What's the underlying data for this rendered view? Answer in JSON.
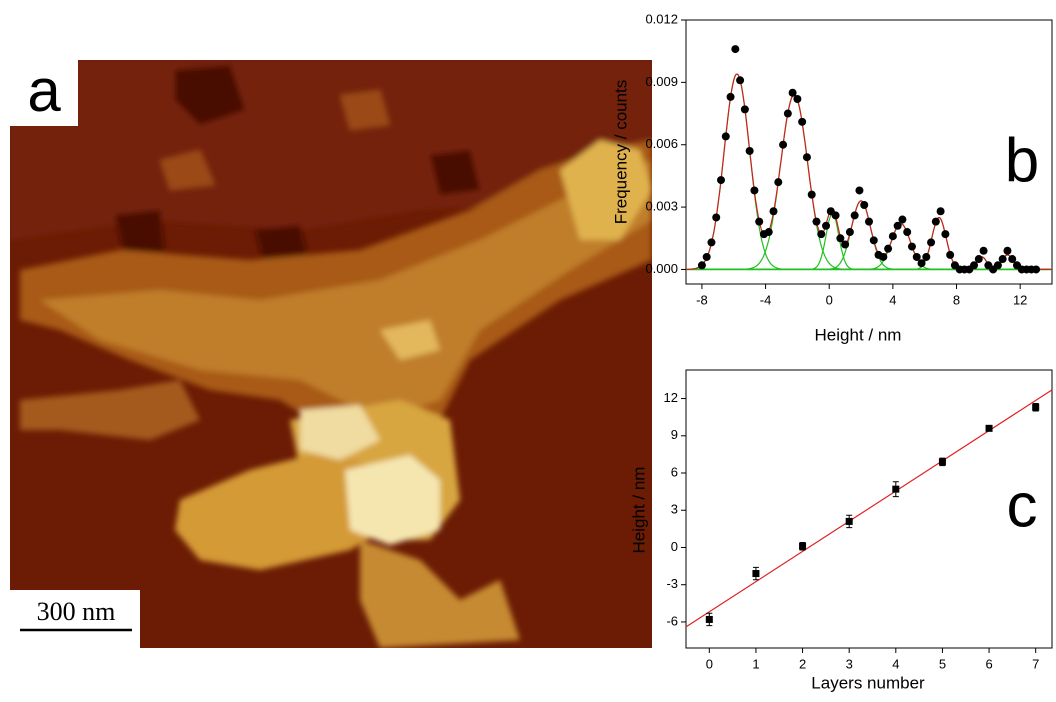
{
  "panel_a": {
    "label": "a",
    "scale_bar": "300 nm"
  },
  "chart_data": [
    {
      "type": "scatter",
      "panel": "b",
      "ylabel": "Frequency / counts",
      "xlabel": "Height / nm",
      "xlim": [
        -9,
        14
      ],
      "ylim": [
        -0.0007,
        0.012
      ],
      "xticks": [
        -8,
        -4,
        0,
        4,
        8,
        12
      ],
      "yticks": [
        {
          "value": 0,
          "label": "0.000"
        },
        {
          "value": 0.003,
          "label": "0.003"
        },
        {
          "value": 0.006,
          "label": "0.006"
        },
        {
          "value": 0.009,
          "label": "0.009"
        },
        {
          "value": 0.012,
          "label": "0.012"
        }
      ],
      "color": "#000000",
      "fit_color": "#20c020",
      "sum_color": "#d02020",
      "x": [
        -8.0,
        -7.7,
        -7.4,
        -7.1,
        -6.8,
        -6.5,
        -6.2,
        -5.9,
        -5.6,
        -5.3,
        -5.0,
        -4.7,
        -4.4,
        -4.1,
        -3.8,
        -3.5,
        -3.2,
        -2.9,
        -2.6,
        -2.3,
        -2.0,
        -1.7,
        -1.4,
        -1.1,
        -0.8,
        -0.5,
        -0.2,
        0.1,
        0.4,
        0.7,
        1.0,
        1.3,
        1.6,
        1.9,
        2.2,
        2.5,
        2.8,
        3.1,
        3.4,
        3.7,
        4.0,
        4.3,
        4.6,
        4.9,
        5.2,
        5.5,
        5.8,
        6.1,
        6.4,
        6.7,
        7.0,
        7.3,
        7.6,
        7.9,
        8.2,
        8.5,
        8.8,
        9.1,
        9.4,
        9.7,
        10.0,
        10.3,
        10.6,
        10.9,
        11.2,
        11.5,
        11.8,
        12.1,
        12.4,
        12.7,
        13.0
      ],
      "values": [
        0.0002,
        0.0006,
        0.0013,
        0.0025,
        0.0043,
        0.0064,
        0.0083,
        0.0106,
        0.0091,
        0.0077,
        0.0057,
        0.0038,
        0.0023,
        0.0017,
        0.0018,
        0.0028,
        0.0042,
        0.006,
        0.0075,
        0.0085,
        0.0082,
        0.0071,
        0.0054,
        0.0036,
        0.0023,
        0.0017,
        0.0021,
        0.0028,
        0.0026,
        0.0015,
        0.0012,
        0.0018,
        0.0026,
        0.0038,
        0.0031,
        0.0023,
        0.0014,
        0.0007,
        0.0006,
        0.001,
        0.0016,
        0.0021,
        0.0024,
        0.0018,
        0.0011,
        0.0006,
        0.0003,
        0.0006,
        0.0013,
        0.0023,
        0.0028,
        0.0017,
        0.0007,
        0.0002,
        0.0,
        0.0,
        0.0,
        0.0002,
        0.0005,
        0.0009,
        0.0002,
        0.0,
        0.0002,
        0.0005,
        0.0009,
        0.0005,
        0.0002,
        0.0,
        0.0,
        0.0,
        0.0
      ],
      "peaks": [
        {
          "center": -5.8,
          "height": 0.0094,
          "width": 0.8
        },
        {
          "center": -2.2,
          "height": 0.0084,
          "width": 0.85
        },
        {
          "center": 0.2,
          "height": 0.0027,
          "width": 0.4
        },
        {
          "center": 2.0,
          "height": 0.0033,
          "width": 0.6
        },
        {
          "center": 4.5,
          "height": 0.0022,
          "width": 0.6
        },
        {
          "center": 6.9,
          "height": 0.0025,
          "width": 0.45
        },
        {
          "center": 9.6,
          "height": 0.0006,
          "width": 0.3
        },
        {
          "center": 11.2,
          "height": 0.0007,
          "width": 0.35
        }
      ]
    },
    {
      "type": "errorbar",
      "panel": "c",
      "ylabel": "Height / nm",
      "xlabel": "Layers number",
      "xlim": [
        -0.5,
        7.35
      ],
      "ylim": [
        -8.1,
        14.3
      ],
      "xticks": [
        0,
        1,
        2,
        3,
        4,
        5,
        6,
        7
      ],
      "yticks": [
        -6,
        -3,
        0,
        3,
        6,
        9,
        12
      ],
      "color": "#000000",
      "fit_color": "#e02020",
      "x": [
        0,
        1,
        2,
        3,
        4,
        5,
        6,
        7
      ],
      "values": [
        -5.8,
        -2.1,
        0.1,
        2.1,
        4.7,
        6.9,
        9.6,
        11.3
      ],
      "errors": [
        0.5,
        0.5,
        0.3,
        0.5,
        0.6,
        0.3,
        0.15,
        0.3
      ],
      "fit": {
        "x": [
          -0.5,
          7.35
        ],
        "values": [
          -6.4,
          12.7
        ]
      }
    }
  ]
}
